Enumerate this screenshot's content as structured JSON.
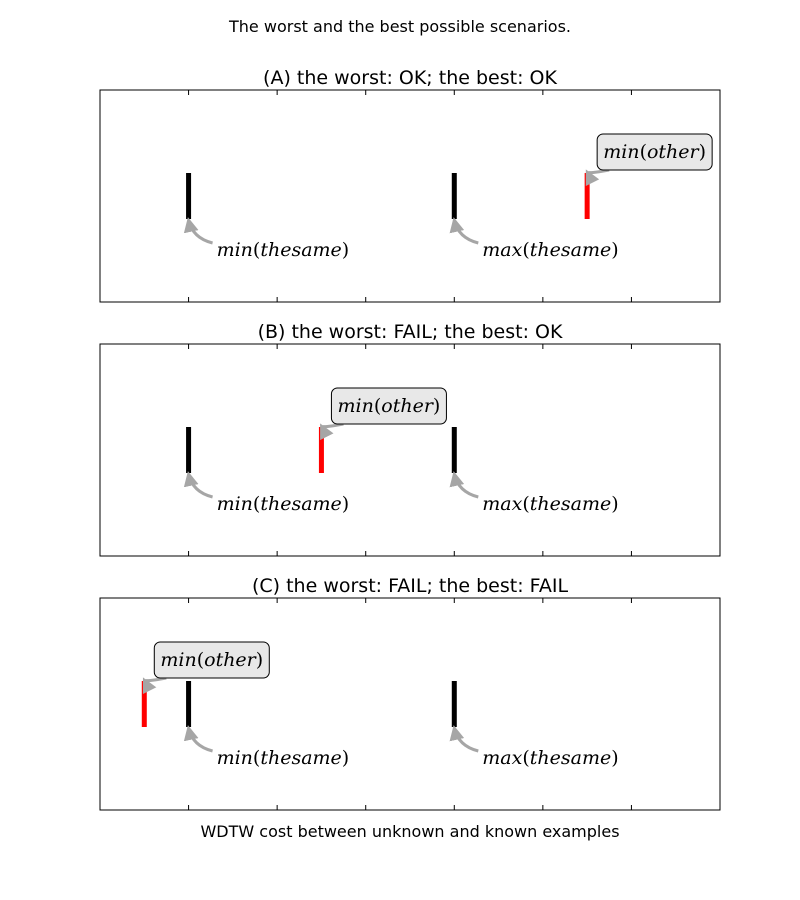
{
  "figure": {
    "suptitle": "The worst and the best possible scenarios.",
    "xlabel": "WDTW cost between unknown and known examples"
  },
  "colors": {
    "same": "#000000",
    "other": "#ff0000",
    "arrow": "#a6a6a6",
    "bbox_fill": "#e8e8e8"
  },
  "chart_data": [
    {
      "type": "scatter",
      "title": "(A) the worst: OK; the best: OK",
      "xlim": [
        0,
        7
      ],
      "ylim": [
        0,
        1
      ],
      "grid": false,
      "markers": [
        {
          "label": "min(thesame)",
          "x": 1.0,
          "y": 0.5,
          "color": "#000000",
          "boxed": false
        },
        {
          "label": "max(thesame)",
          "x": 4.0,
          "y": 0.5,
          "color": "#000000",
          "boxed": false
        },
        {
          "label": "min(other)",
          "x": 5.5,
          "y": 0.5,
          "color": "#ff0000",
          "boxed": true
        }
      ]
    },
    {
      "type": "scatter",
      "title": "(B) the worst: FAIL; the best: OK",
      "xlim": [
        0,
        7
      ],
      "ylim": [
        0,
        1
      ],
      "grid": false,
      "markers": [
        {
          "label": "min(thesame)",
          "x": 1.0,
          "y": 0.5,
          "color": "#000000",
          "boxed": false
        },
        {
          "label": "max(thesame)",
          "x": 4.0,
          "y": 0.5,
          "color": "#000000",
          "boxed": false
        },
        {
          "label": "min(other)",
          "x": 2.5,
          "y": 0.5,
          "color": "#ff0000",
          "boxed": true
        }
      ]
    },
    {
      "type": "scatter",
      "title": "(C) the worst: FAIL; the best: FAIL",
      "xlim": [
        0,
        7
      ],
      "ylim": [
        0,
        1
      ],
      "grid": false,
      "markers": [
        {
          "label": "min(thesame)",
          "x": 1.0,
          "y": 0.5,
          "color": "#000000",
          "boxed": false
        },
        {
          "label": "max(thesame)",
          "x": 4.0,
          "y": 0.5,
          "color": "#000000",
          "boxed": false
        },
        {
          "label": "min(other)",
          "x": 0.5,
          "y": 0.5,
          "color": "#ff0000",
          "boxed": true
        }
      ]
    }
  ]
}
